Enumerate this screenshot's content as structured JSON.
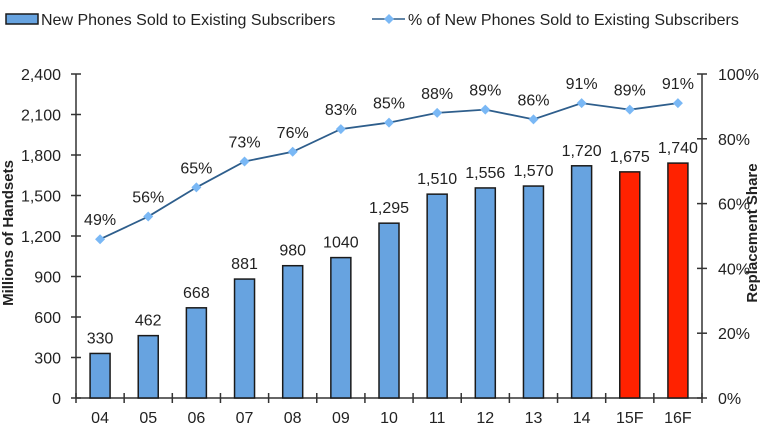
{
  "chart_data": {
    "type": "bar+line",
    "title": "",
    "categories": [
      "04",
      "05",
      "06",
      "07",
      "08",
      "09",
      "10",
      "11",
      "12",
      "13",
      "14",
      "15F",
      "16F"
    ],
    "series": [
      {
        "name": "New Phones Sold to Existing Subscribers",
        "type": "bar",
        "axis": "left",
        "values": [
          330,
          462,
          668,
          881,
          980,
          1040,
          1295,
          1510,
          1556,
          1570,
          1720,
          1675,
          1740
        ],
        "labels": [
          "330",
          "462",
          "668",
          "881",
          "980",
          "1040",
          "1,295",
          "1,510",
          "1,556",
          "1,570",
          "1,720",
          "1,675",
          "1,740"
        ],
        "forecast": [
          false,
          false,
          false,
          false,
          false,
          false,
          false,
          false,
          false,
          false,
          false,
          true,
          true
        ]
      },
      {
        "name": "% of New Phones Sold to Existing Subscribers",
        "type": "line",
        "axis": "right",
        "values": [
          49,
          56,
          65,
          73,
          76,
          83,
          85,
          88,
          89,
          86,
          91,
          89,
          91
        ],
        "labels": [
          "49%",
          "56%",
          "65%",
          "73%",
          "76%",
          "83%",
          "85%",
          "88%",
          "89%",
          "86%",
          "91%",
          "89%",
          "91%"
        ]
      }
    ],
    "colors": {
      "bar": "#67a3e0",
      "bar_forecast": "#ff2200",
      "bar_border": "#1a1a1a",
      "line": "#2e5e8c",
      "marker": "#7ab8f5",
      "axis": "#333333"
    },
    "y_left": {
      "label": "Millions of Handsets",
      "range": [
        0,
        2400
      ],
      "ticks": [
        0,
        300,
        600,
        900,
        1200,
        1500,
        1800,
        2100,
        2400
      ],
      "tick_labels": [
        "0",
        "300",
        "600",
        "900",
        "1,200",
        "1,500",
        "1,800",
        "2,100",
        "2,400"
      ]
    },
    "y_right": {
      "label": "Replacement Share",
      "range": [
        0,
        100
      ],
      "ticks": [
        0,
        20,
        40,
        60,
        80,
        100
      ],
      "tick_labels": [
        "0%",
        "20%",
        "40%",
        "60%",
        "80%",
        "100%"
      ]
    },
    "xlabel": "",
    "grid": false,
    "legend": {
      "position": "top",
      "entries": [
        "New Phones Sold to Existing Subscribers",
        "% of New Phones Sold to Existing Subscribers"
      ]
    }
  }
}
